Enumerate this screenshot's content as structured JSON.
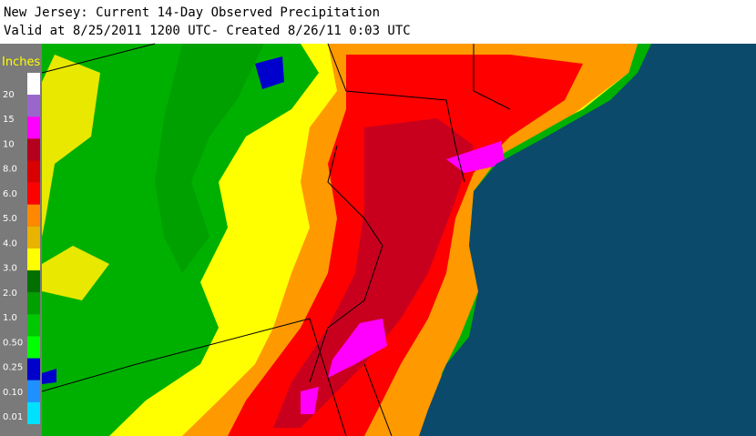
{
  "header": {
    "title": "New Jersey: Current 14-Day Observed Precipitation",
    "subtitle": "Valid at 8/25/2011 1200 UTC- Created 8/26/11 0:03 UTC"
  },
  "legend": {
    "title": "Inches",
    "labels": [
      "20",
      "15",
      "10",
      "8.0",
      "6.0",
      "5.0",
      "4.0",
      "3.0",
      "2.0",
      "1.0",
      "0.50",
      "0.25",
      "0.10",
      "0.01"
    ],
    "colors": [
      "#ffffff",
      "#9966cc",
      "#ff00ff",
      "#b4001e",
      "#d80000",
      "#ff0000",
      "#ff8800",
      "#e8b400",
      "#ffff00",
      "#007000",
      "#00a000",
      "#00c800",
      "#00ff00",
      "#0000cc",
      "#1e90ff",
      "#00e0ff"
    ]
  }
}
